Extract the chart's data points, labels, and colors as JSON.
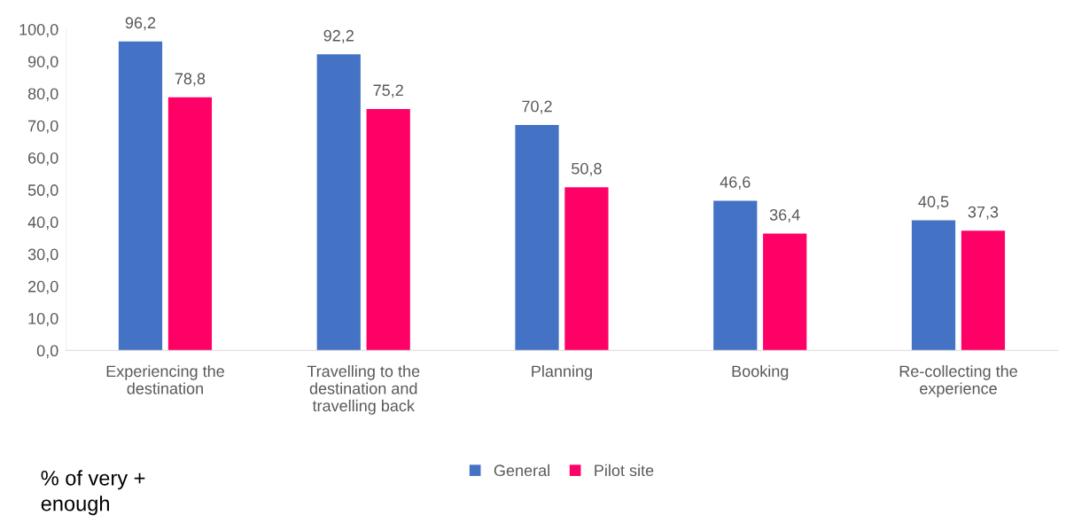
{
  "chart_data": {
    "type": "bar",
    "categories": [
      "Experiencing the destination",
      "Travelling to the destination and travelling back",
      "Planning",
      "Booking",
      "Re-collecting the experience"
    ],
    "series": [
      {
        "name": "General",
        "color": "#4472c4",
        "values": [
          96.2,
          92.2,
          70.2,
          46.6,
          40.5
        ]
      },
      {
        "name": "Pilot site",
        "color": "#ff0066",
        "values": [
          78.8,
          75.2,
          50.8,
          36.4,
          37.3
        ]
      }
    ],
    "value_labels": [
      [
        "96,2",
        "92,2",
        "70,2",
        "46,6",
        "40,5"
      ],
      [
        "78,8",
        "75,2",
        "50,8",
        "36,4",
        "37,3"
      ]
    ],
    "ylim": [
      0,
      100
    ],
    "yticks": [
      {
        "value": 0,
        "label": "0,0"
      },
      {
        "value": 10,
        "label": "10,0"
      },
      {
        "value": 20,
        "label": "20,0"
      },
      {
        "value": 30,
        "label": "30,0"
      },
      {
        "value": 40,
        "label": "40,0"
      },
      {
        "value": 50,
        "label": "50,0"
      },
      {
        "value": 60,
        "label": "60,0"
      },
      {
        "value": 70,
        "label": "70,0"
      },
      {
        "value": 80,
        "label": "80,0"
      },
      {
        "value": 90,
        "label": "90,0"
      },
      {
        "value": 100,
        "label": "100,0"
      }
    ],
    "grid": false,
    "legend": "bottom",
    "annotations": [
      "% of very + enough"
    ]
  }
}
